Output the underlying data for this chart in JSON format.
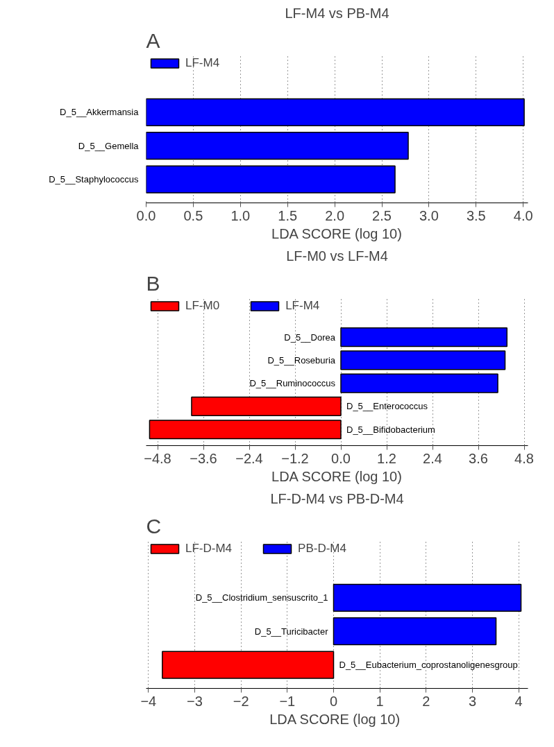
{
  "chart_data": [
    {
      "type": "bar",
      "orientation": "horizontal",
      "title": "LF-M4 vs PB-M4",
      "xlabel": "LDA SCORE (log 10)",
      "annotations": [
        "A"
      ],
      "categories": [
        "D_5__Akkermansia",
        "D_5__Gemella",
        "D_5__Staphylococcus"
      ],
      "series": [
        {
          "name": "LF-M4",
          "color": "#0000ff",
          "values": [
            4.01,
            2.78,
            2.64
          ]
        }
      ],
      "xlim": [
        0,
        4.05
      ],
      "xticks": [
        {
          "value": 0,
          "label": "0.0"
        },
        0.5,
        {
          "value": 1,
          "label": "1.0"
        },
        1.5,
        {
          "value": 2,
          "label": "2.0"
        },
        2.5,
        {
          "value": 3,
          "label": "3.0"
        },
        3.5,
        {
          "value": 4,
          "label": "4.0"
        }
      ],
      "grid": "x",
      "legend": "top left"
    },
    {
      "type": "bar",
      "orientation": "horizontal",
      "title": "LF-M0 vs LF-M4",
      "xlabel": "LDA SCORE (log 10)",
      "annotations": [
        "B"
      ],
      "categories": [
        "D_5__Dorea",
        "D_5__Roseburia",
        "D_5__Ruminococcus",
        "D_5__Enterococcus",
        "D_5__Bifidobacterium"
      ],
      "series": [
        {
          "name": "LF-M0",
          "color": "#ff0000",
          "values": [
            null,
            null,
            null,
            -3.91,
            -5.01
          ]
        },
        {
          "name": "LF-M4",
          "color": "#0000ff",
          "values": [
            4.35,
            4.3,
            4.11,
            null,
            null
          ]
        }
      ],
      "xlim": [
        -5.1,
        4.9
      ],
      "xticks": [
        -4.8,
        -3.6,
        -2.4,
        -1.2,
        {
          "value": 0,
          "label": "0.0"
        },
        1.2,
        2.4,
        3.6,
        4.8
      ],
      "grid": "x",
      "legend": "top left"
    },
    {
      "type": "bar",
      "orientation": "horizontal",
      "title": "LF-D-M4 vs PB-D-M4",
      "xlabel": "LDA  SCORE (log 10)",
      "annotations": [
        "C"
      ],
      "categories": [
        "D_5__Clostridium_sensuscrito_1",
        "D_5__Turicibacter",
        "D_5__Eubacterium_coprostanoligenesgroup"
      ],
      "series": [
        {
          "name": "LF-D-M4",
          "color": "#ff0000",
          "values": [
            null,
            null,
            -3.7
          ]
        },
        {
          "name": "PB-D-M4",
          "color": "#0000ff",
          "values": [
            4.05,
            3.51,
            null
          ]
        }
      ],
      "xlim": [
        -4.05,
        4.2
      ],
      "xticks": [
        -4,
        -3,
        -2,
        -1,
        0,
        1,
        2,
        3,
        4
      ],
      "grid": "x",
      "legend": "top left"
    }
  ]
}
